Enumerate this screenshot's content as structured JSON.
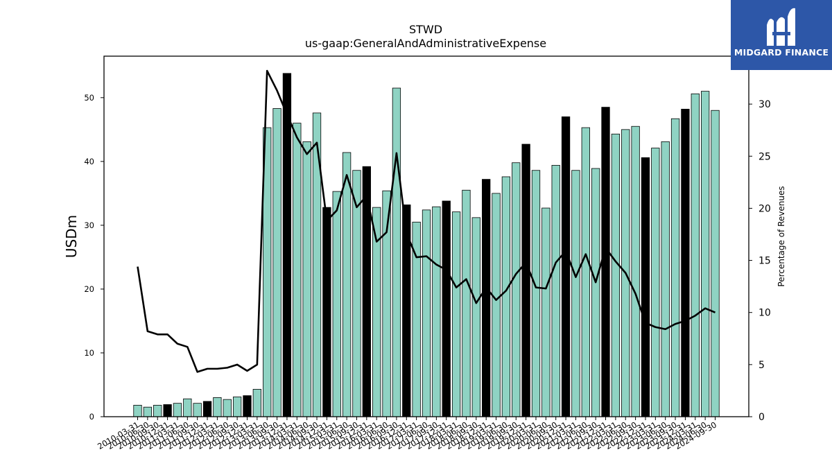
{
  "brand": {
    "name": "MIDGARD FINANCE",
    "color": "#2d57a8"
  },
  "chart_data": {
    "type": "bar",
    "title": "STWD",
    "subtitle": "us-gaap:GeneralAndAdministrativeExpense",
    "ylabel": "USDm",
    "y2label": "Percentage of Revenues",
    "ylim": [
      0,
      56.5
    ],
    "y2lim": [
      0,
      34.6
    ],
    "yticks": [
      0,
      10,
      20,
      30,
      40,
      50
    ],
    "y2ticks": [
      0,
      5,
      10,
      15,
      20,
      25,
      30
    ],
    "bar_color": "#8fd3c3",
    "highlight_color": "#000000",
    "line_color": "#000000",
    "grid": false,
    "legend": "none",
    "categories": [
      "2010-03-31",
      "2010-06-30",
      "2010-09-30",
      "2010-12-31",
      "2011-03-31",
      "2011-06-30",
      "2011-09-30",
      "2011-12-31",
      "2012-03-31",
      "2012-06-30",
      "2012-09-30",
      "2012-12-31",
      "2013-03-31",
      "2013-06-30",
      "2013-09-30",
      "2013-12-31",
      "2014-03-31",
      "2014-06-30",
      "2014-09-30",
      "2014-12-31",
      "2015-03-31",
      "2015-06-30",
      "2015-09-30",
      "2015-12-31",
      "2016-03-31",
      "2016-06-30",
      "2016-09-30",
      "2016-12-31",
      "2017-03-31",
      "2017-06-30",
      "2017-09-30",
      "2017-12-31",
      "2018-03-31",
      "2018-06-30",
      "2018-09-30",
      "2018-12-31",
      "2019-03-31",
      "2019-06-30",
      "2019-09-30",
      "2019-12-31",
      "2020-03-31",
      "2020-06-30",
      "2020-09-30",
      "2020-12-31",
      "2021-03-31",
      "2021-06-30",
      "2021-09-30",
      "2021-12-31",
      "2022-03-31",
      "2022-06-30",
      "2022-09-30",
      "2022-12-31",
      "2023-03-31",
      "2023-06-30",
      "2023-09-30",
      "2023-12-31",
      "2024-03-31",
      "2024-06-30",
      "2024-09-30"
    ],
    "series": [
      {
        "type": "bar",
        "values": [
          1.8,
          1.5,
          1.8,
          1.9,
          2.1,
          2.8,
          2.1,
          2.4,
          3.0,
          2.7,
          3.1,
          3.3,
          4.3,
          45.3,
          48.3,
          53.8,
          46.0,
          43.1,
          47.6,
          32.8,
          35.3,
          41.4,
          38.6,
          39.2,
          32.8,
          35.4,
          51.5,
          33.2,
          30.5,
          32.4,
          32.9,
          33.8,
          32.1,
          35.5,
          31.2,
          37.2,
          35.0,
          37.6,
          39.8,
          42.7,
          38.6,
          32.7,
          39.4,
          47.0,
          38.6,
          45.3,
          38.9,
          48.5,
          44.3,
          45.0,
          45.5,
          40.6,
          42.1,
          43.1,
          46.7,
          48.2,
          50.6,
          51.0,
          48.0
        ],
        "highlighted": [
          false,
          false,
          false,
          true,
          false,
          false,
          false,
          true,
          false,
          false,
          false,
          true,
          false,
          false,
          false,
          true,
          false,
          false,
          false,
          true,
          false,
          false,
          false,
          true,
          false,
          false,
          false,
          true,
          false,
          false,
          false,
          true,
          false,
          false,
          false,
          true,
          false,
          false,
          false,
          true,
          false,
          false,
          false,
          true,
          false,
          false,
          false,
          true,
          false,
          false,
          false,
          true,
          false,
          false,
          false,
          true,
          false,
          false,
          false
        ]
      },
      {
        "type": "line",
        "axis": "right",
        "values": [
          14.4,
          8.2,
          7.9,
          7.9,
          7.0,
          6.7,
          4.3,
          4.6,
          4.6,
          4.7,
          5.0,
          4.4,
          5.0,
          33.2,
          31.3,
          29.0,
          26.8,
          25.2,
          26.3,
          18.8,
          19.8,
          23.2,
          20.1,
          21.2,
          16.8,
          17.7,
          25.3,
          17.6,
          15.3,
          15.4,
          14.6,
          14.1,
          12.4,
          13.2,
          10.9,
          12.4,
          11.2,
          12.1,
          13.7,
          14.8,
          12.4,
          12.3,
          14.8,
          15.9,
          13.4,
          15.6,
          12.9,
          16.2,
          14.9,
          13.8,
          11.8,
          9.0,
          8.6,
          8.4,
          8.9,
          9.2,
          9.7,
          10.4,
          10.0
        ]
      }
    ]
  }
}
